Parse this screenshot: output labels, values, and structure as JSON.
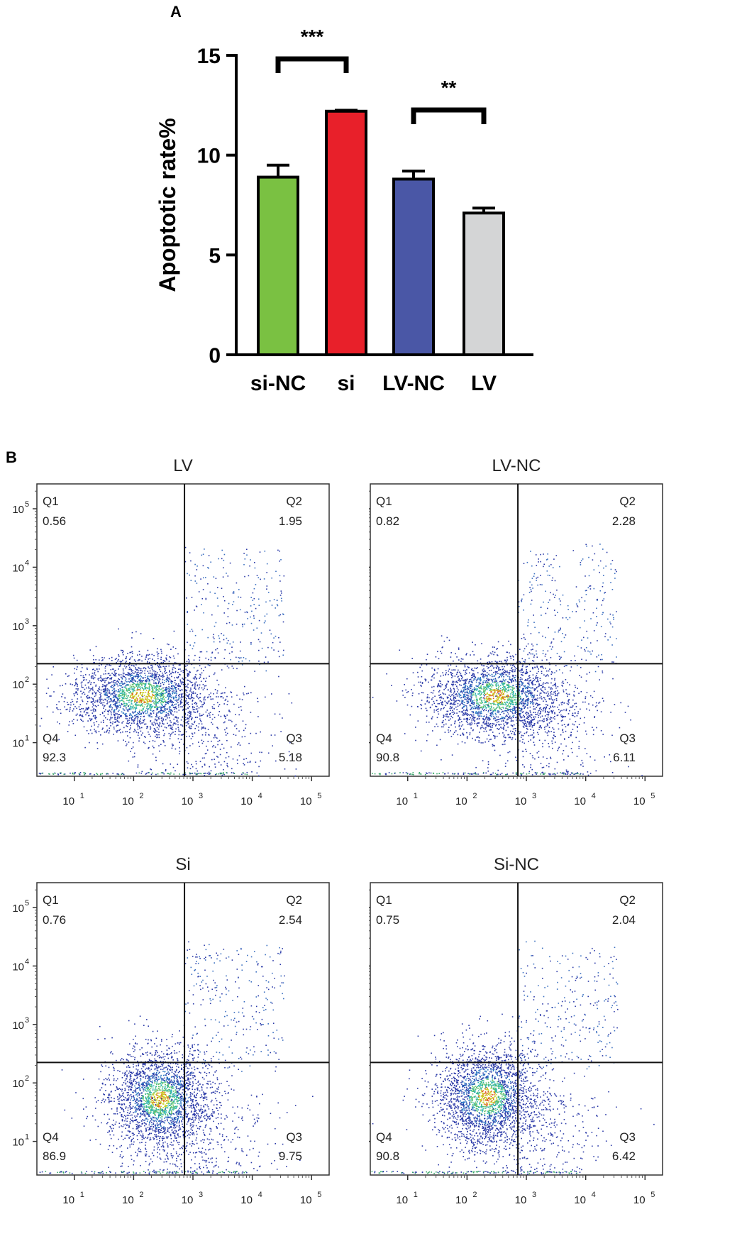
{
  "panel_labels": {
    "a": "A",
    "b": "B"
  },
  "colors": {
    "si_nc": "#7ac142",
    "si": "#e8202a",
    "lv_nc": "#4a57a6",
    "lv": "#d4d5d6"
  },
  "chart_data": [
    {
      "type": "bar",
      "title": "",
      "xlabel": "",
      "ylabel": "Apoptotic rate%",
      "ylim": [
        0,
        15
      ],
      "yticks": [
        0,
        5,
        10,
        15
      ],
      "categories": [
        "si-NC",
        "si",
        "LV-NC",
        "LV"
      ],
      "values": [
        8.9,
        12.2,
        8.8,
        7.1
      ],
      "errors": [
        0.6,
        0.05,
        0.4,
        0.25
      ],
      "significance": [
        {
          "from": 0,
          "to": 1,
          "label": "***"
        },
        {
          "from": 2,
          "to": 3,
          "label": "**"
        }
      ]
    },
    {
      "type": "scatter",
      "title": "LV",
      "quadrants": {
        "Q1": "0.56",
        "Q2": "1.95",
        "Q3": "5.18",
        "Q4": "92.3"
      },
      "x_ticks": [
        "10",
        "10",
        "10",
        "10",
        "10"
      ],
      "x_exponents": [
        "1",
        "2",
        "3",
        "4",
        "5"
      ],
      "y_ticks": [
        "10",
        "10",
        "10",
        "10",
        "10"
      ],
      "y_exponents": [
        "5",
        "4",
        "3",
        "2",
        "1"
      ]
    },
    {
      "type": "scatter",
      "title": "LV-NC",
      "quadrants": {
        "Q1": "0.82",
        "Q2": "2.28",
        "Q3": "6.11",
        "Q4": "90.8"
      },
      "x_ticks": [
        "10",
        "10",
        "10",
        "10",
        "10"
      ],
      "x_exponents": [
        "1",
        "2",
        "3",
        "4",
        "5"
      ],
      "y_ticks": [
        "10",
        "10",
        "10",
        "10",
        "10"
      ],
      "y_exponents": [
        "5",
        "4",
        "3",
        "2",
        "1"
      ]
    },
    {
      "type": "scatter",
      "title": "Si",
      "quadrants": {
        "Q1": "0.76",
        "Q2": "2.54",
        "Q3": "9.75",
        "Q4": "86.9"
      },
      "x_ticks": [
        "10",
        "10",
        "10",
        "10",
        "10"
      ],
      "x_exponents": [
        "1",
        "2",
        "3",
        "4",
        "5"
      ],
      "y_ticks": [
        "10",
        "10",
        "10",
        "10",
        "10"
      ],
      "y_exponents": [
        "5",
        "4",
        "3",
        "2",
        "1"
      ]
    },
    {
      "type": "scatter",
      "title": "Si-NC",
      "quadrants": {
        "Q1": "0.75",
        "Q2": "2.04",
        "Q3": "6.42",
        "Q4": "90.8"
      },
      "x_ticks": [
        "10",
        "10",
        "10",
        "10",
        "10"
      ],
      "x_exponents": [
        "1",
        "2",
        "3",
        "4",
        "5"
      ],
      "y_ticks": [
        "10",
        "10",
        "10",
        "10",
        "10"
      ],
      "y_exponents": [
        "5",
        "4",
        "3",
        "2",
        "1"
      ]
    }
  ]
}
